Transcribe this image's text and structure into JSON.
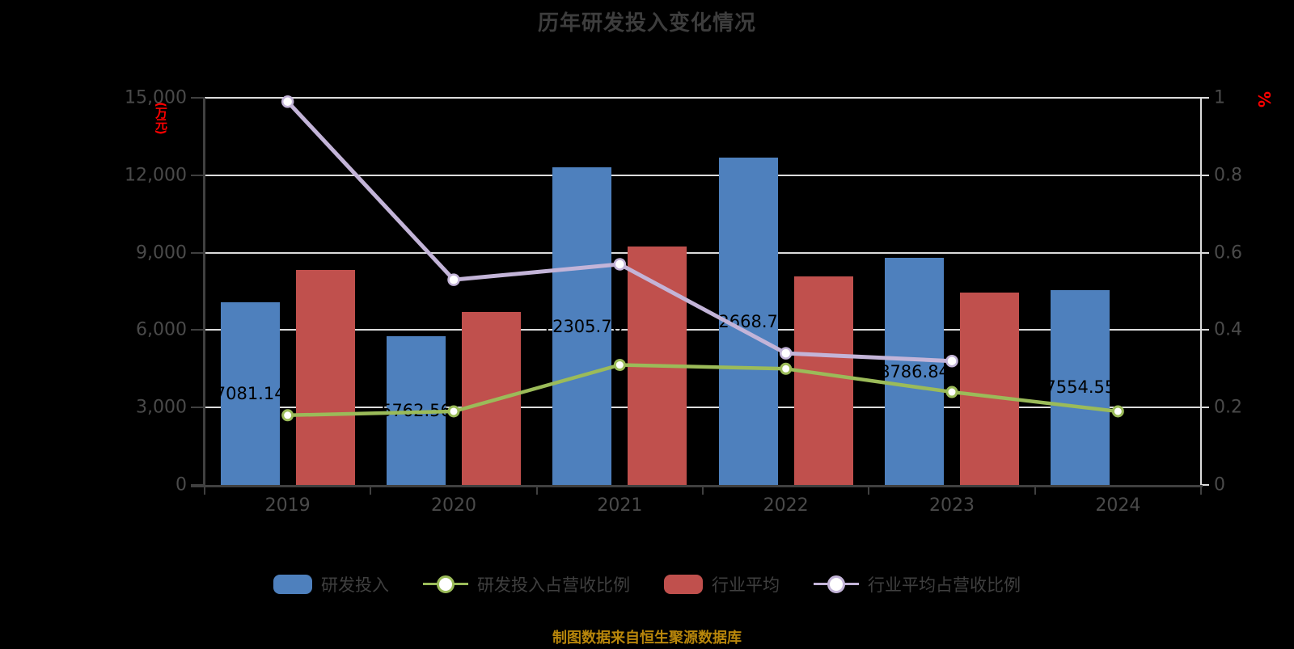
{
  "title": "历年研发投入变化情况",
  "caption": "制图数据来自恒生聚源数据库",
  "axes": {
    "left_unit": "(万元)",
    "right_unit": "%",
    "left_ticks": [
      "15,000",
      "12,000",
      "9,000",
      "6,000",
      "3,000",
      "0"
    ],
    "right_ticks": [
      "1",
      "0.8",
      "0.6",
      "0.4",
      "0.2",
      "0"
    ]
  },
  "colors": {
    "bar_blue": "#4E80BD",
    "bar_red": "#C0504D",
    "line_green": "#9BBB59",
    "line_purple": "#C3B4D8",
    "grid": "#DCDCDC",
    "axis_dark": "#404040",
    "tick_text": "#4A4A4A",
    "title_text": "#3D3D3D",
    "bar_label_text": "#000000",
    "unit_red": "#FF0000",
    "caption_gold": "#B8860B",
    "background": "#000000",
    "marker_fill": "#FFFFFF"
  },
  "legend": [
    {
      "label": "研发投入",
      "type": "bar",
      "color_key": "bar_blue"
    },
    {
      "label": "研发投入占营收比例",
      "type": "line",
      "color_key": "line_green"
    },
    {
      "label": "行业平均",
      "type": "bar",
      "color_key": "bar_red"
    },
    {
      "label": "行业平均占营收比例",
      "type": "line",
      "color_key": "line_purple"
    }
  ],
  "chart_data": {
    "type": "bar+line combo",
    "categories": [
      "2019",
      "2020",
      "2021",
      "2022",
      "2023",
      "2024"
    ],
    "left_axis": {
      "label": "(万元)",
      "min": 0,
      "max": 15000,
      "step": 3000
    },
    "right_axis": {
      "label": "%",
      "min": 0,
      "max": 1,
      "step": 0.2
    },
    "grid": true,
    "legend_position": "bottom",
    "series": [
      {
        "name": "研发投入",
        "type": "bar",
        "axis": "left",
        "color_key": "bar_blue",
        "values": [
          7081.14,
          5762.56,
          12305.76,
          12668.73,
          8786.84,
          7554.55
        ],
        "data_labels": [
          "7081.14",
          "5762.56",
          "12305.76",
          "12668.73",
          "8786.84",
          "7554.55"
        ]
      },
      {
        "name": "行业平均",
        "type": "bar",
        "axis": "left",
        "color_key": "bar_red",
        "values": [
          8330,
          6700,
          9230,
          8090,
          7440,
          null
        ],
        "note": "values estimated from bar heights; no data labels shown"
      },
      {
        "name": "研发投入占营收比例",
        "type": "line",
        "axis": "right",
        "color_key": "line_green",
        "values": [
          0.18,
          0.19,
          0.31,
          0.3,
          0.24,
          0.19
        ]
      },
      {
        "name": "行业平均占营收比例",
        "type": "line",
        "axis": "right",
        "color_key": "line_purple",
        "values": [
          0.99,
          0.53,
          0.57,
          0.34,
          0.32,
          null
        ]
      }
    ]
  }
}
